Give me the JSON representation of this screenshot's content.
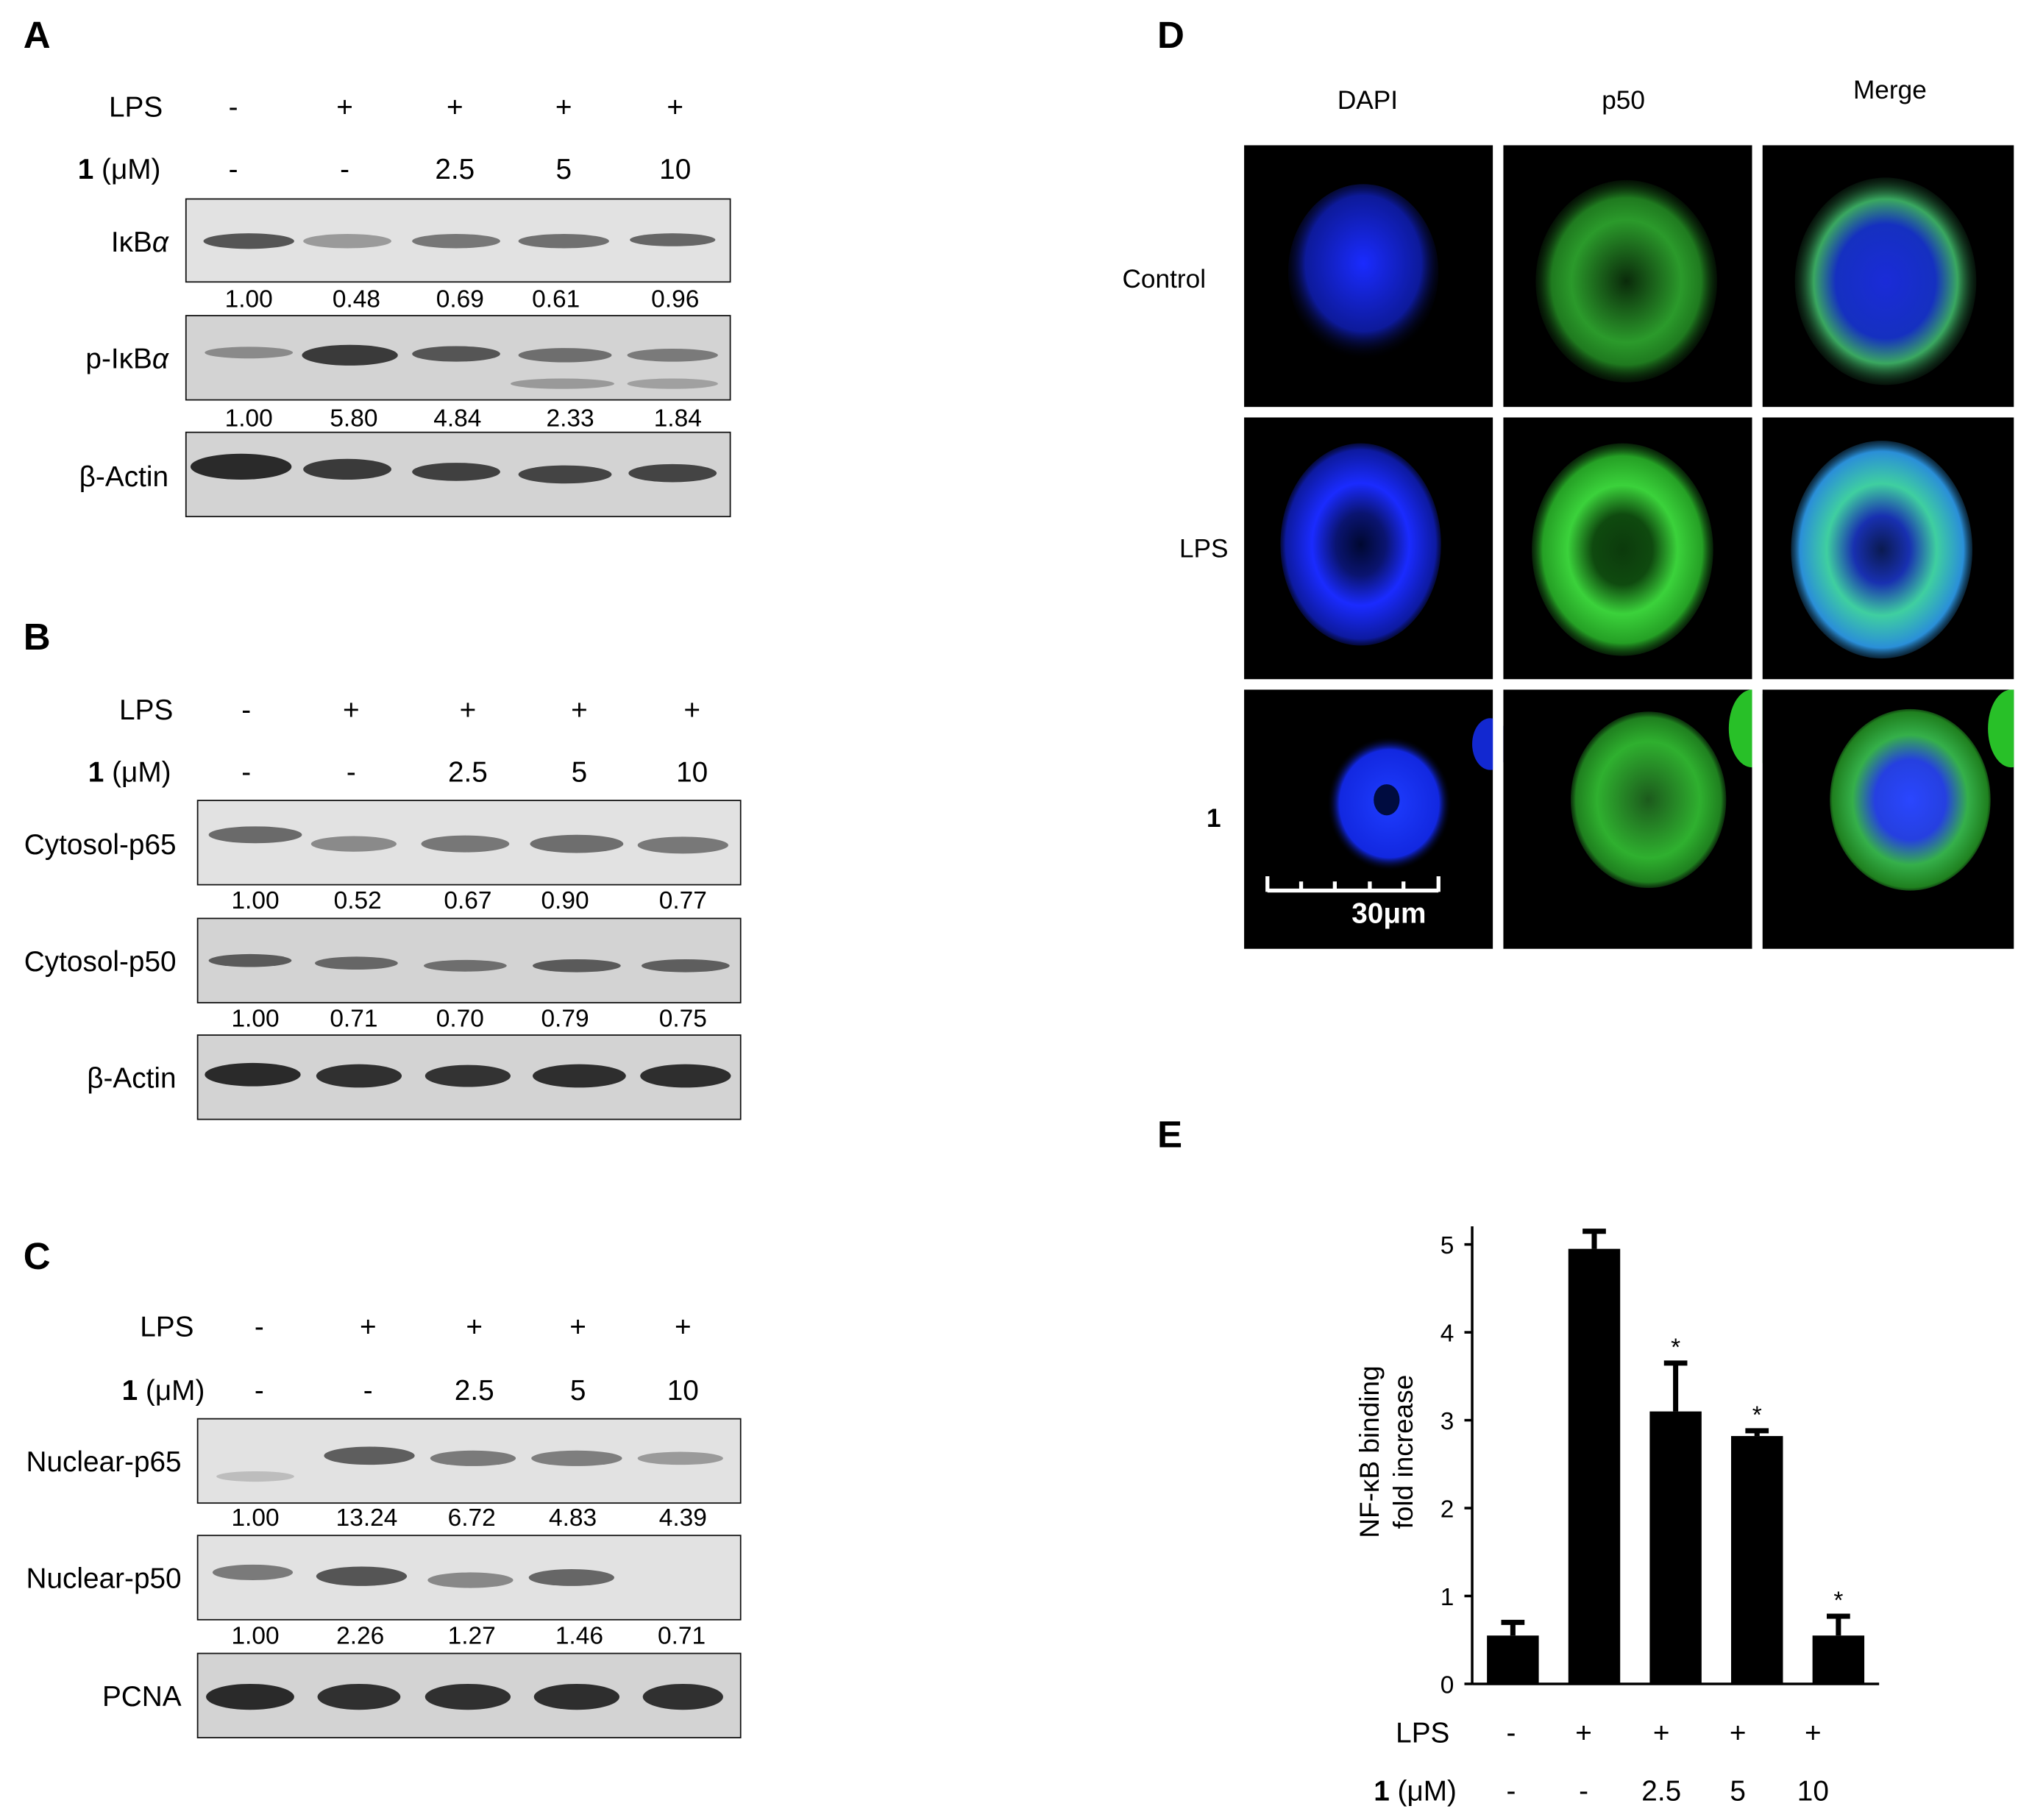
{
  "panels": {
    "A": {
      "label": "A",
      "treatment_rows": [
        {
          "label": "LPS",
          "values": [
            "-",
            "+",
            "+",
            "+",
            "+"
          ]
        },
        {
          "label_bold": "1",
          "label": " (μM)",
          "values": [
            "-",
            "-",
            "2.5",
            "5",
            "10"
          ]
        }
      ],
      "blots": [
        {
          "label": "IκB",
          "label_italic": "α",
          "quant": [
            "1.00",
            "0.48",
            "0.69",
            "0.61",
            "0.96"
          ]
        },
        {
          "label": "p-IκB",
          "label_italic": "α",
          "quant": [
            "1.00",
            "5.80",
            "4.84",
            "2.33",
            "1.84"
          ]
        },
        {
          "label": "β-Actin",
          "label_italic": "",
          "quant": []
        }
      ]
    },
    "B": {
      "label": "B",
      "treatment_rows": [
        {
          "label": "LPS",
          "values": [
            "-",
            "+",
            "+",
            "+",
            "+"
          ]
        },
        {
          "label_bold": "1",
          "label": " (μM)",
          "values": [
            "-",
            "-",
            "2.5",
            "5",
            "10"
          ]
        }
      ],
      "blots": [
        {
          "label": "Cytosol-p65",
          "quant": [
            "1.00",
            "0.52",
            "0.67",
            "0.90",
            "0.77"
          ]
        },
        {
          "label": "Cytosol-p50",
          "quant": [
            "1.00",
            "0.71",
            "0.70",
            "0.79",
            "0.75"
          ]
        },
        {
          "label": "β-Actin",
          "quant": []
        }
      ]
    },
    "C": {
      "label": "C",
      "treatment_rows": [
        {
          "label": "LPS",
          "values": [
            "-",
            "+",
            "+",
            "+",
            "+"
          ]
        },
        {
          "label_bold": "1",
          "label": " (μM)",
          "values": [
            "-",
            "-",
            "2.5",
            "5",
            "10"
          ]
        }
      ],
      "blots": [
        {
          "label": "Nuclear-p65",
          "quant": [
            "1.00",
            "13.24",
            "6.72",
            "4.83",
            "4.39"
          ]
        },
        {
          "label": "Nuclear-p50",
          "quant": [
            "1.00",
            "2.26",
            "1.27",
            "1.46",
            "0.71"
          ]
        },
        {
          "label": "PCNA",
          "quant": []
        }
      ]
    },
    "D": {
      "label": "D",
      "columns": [
        "DAPI",
        "p50",
        "Merge"
      ],
      "rows": [
        "Control",
        "LPS",
        "1"
      ],
      "scale_bar": "30μm"
    },
    "E": {
      "label": "E",
      "ylabel_line1": "NF-κB binding",
      "ylabel_line2": "fold increase",
      "treatment_rows": [
        {
          "label": "LPS",
          "values": [
            "-",
            "+",
            "+",
            "+",
            "+"
          ]
        },
        {
          "label_bold": "1",
          "label": " (μM)",
          "values": [
            "-",
            "-",
            "2.5",
            "5",
            "10"
          ]
        }
      ]
    }
  },
  "chart_data": {
    "type": "bar",
    "categories": [
      "-/-",
      "+/-",
      "+/2.5",
      "+/5",
      "+/10"
    ],
    "values": [
      0.55,
      4.95,
      3.1,
      2.82,
      0.55
    ],
    "errors": [
      0.15,
      0.2,
      0.55,
      0.06,
      0.22
    ],
    "significance": [
      "",
      "",
      "*",
      "*",
      "*"
    ],
    "ylim": [
      0,
      5
    ],
    "yticks": [
      "0",
      "1",
      "2",
      "3",
      "4",
      "5"
    ],
    "ylabel": "NF-κB binding fold increase",
    "xlabel": ""
  }
}
